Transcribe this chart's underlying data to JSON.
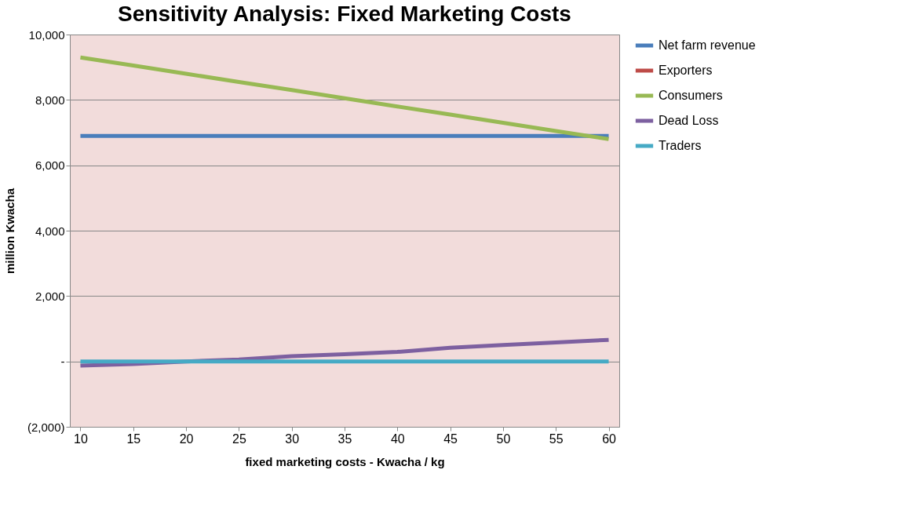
{
  "chart_data": {
    "type": "line",
    "title": "Sensitivity Analysis: Fixed Marketing Costs",
    "xlabel": "fixed marketing costs - Kwacha / kg",
    "ylabel": "million Kwacha",
    "categories": [
      "10",
      "15",
      "20",
      "25",
      "30",
      "35",
      "40",
      "45",
      "50",
      "55",
      "60"
    ],
    "series": [
      {
        "name": "Net farm revenue",
        "color": "#4a7ebb",
        "values": [
          6900,
          6900,
          6900,
          6900,
          6900,
          6900,
          6900,
          6900,
          6900,
          6900,
          6900
        ]
      },
      {
        "name": "Exporters",
        "color": "#be4b48",
        "values": [
          null,
          null,
          null,
          null,
          null,
          null,
          null,
          null,
          null,
          null,
          null
        ]
      },
      {
        "name": "Consumers",
        "color": "#98b954",
        "values": [
          9300,
          9050,
          8800,
          8550,
          8300,
          8050,
          7800,
          7550,
          7300,
          7050,
          6800
        ]
      },
      {
        "name": "Dead Loss",
        "color": "#7d60a0",
        "values": [
          -130,
          -80,
          0,
          60,
          160,
          220,
          290,
          420,
          500,
          580,
          660
        ]
      },
      {
        "name": "Traders",
        "color": "#46aac5",
        "values": [
          0,
          0,
          0,
          0,
          0,
          0,
          0,
          0,
          0,
          0,
          0
        ]
      }
    ],
    "ylim": [
      -2000,
      10000
    ],
    "yticks": [
      {
        "value": -2000,
        "label": "(2,000)"
      },
      {
        "value": 0,
        "label": "-"
      },
      {
        "value": 2000,
        "label": "2,000"
      },
      {
        "value": 4000,
        "label": "4,000"
      },
      {
        "value": 6000,
        "label": "6,000"
      },
      {
        "value": 8000,
        "label": "8,000"
      },
      {
        "value": 10000,
        "label": "10,000"
      }
    ],
    "grid": "y",
    "legend": "right",
    "marker": "none",
    "line_style": "solid"
  }
}
